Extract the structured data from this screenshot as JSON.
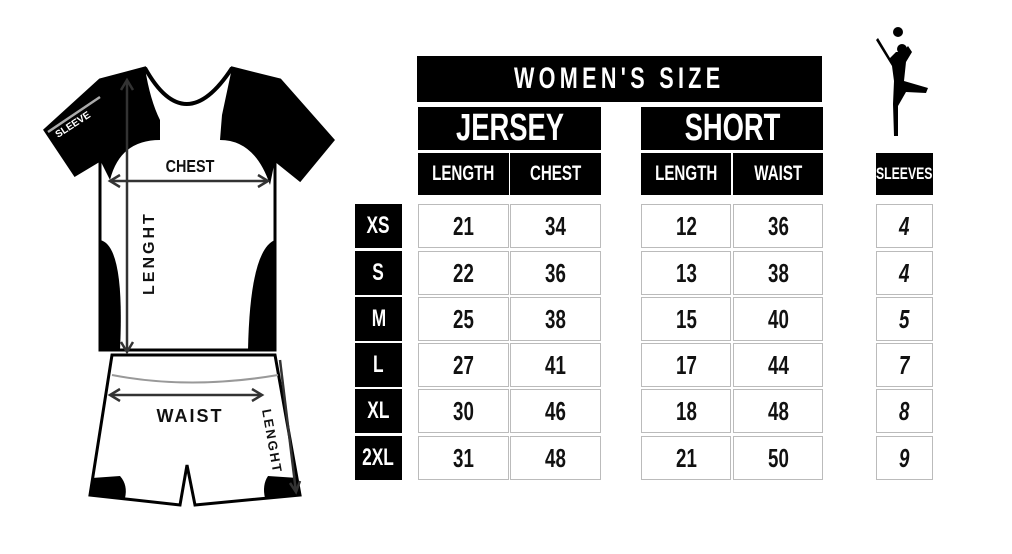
{
  "title": "WOMEN'S SIZE",
  "jersey": {
    "label": "JERSEY",
    "columns": [
      "LENGTH",
      "CHEST"
    ]
  },
  "short": {
    "label": "SHORT",
    "columns": [
      "LENGTH",
      "WAIST"
    ]
  },
  "sleeves": {
    "label": "SLEEVES"
  },
  "sizes": [
    "XS",
    "S",
    "M",
    "L",
    "XL",
    "2XL"
  ],
  "rows": [
    {
      "size": "XS",
      "jersey_length": "21",
      "jersey_chest": "34",
      "short_length": "12",
      "short_waist": "36",
      "sleeves": "4"
    },
    {
      "size": "S",
      "jersey_length": "22",
      "jersey_chest": "36",
      "short_length": "13",
      "short_waist": "38",
      "sleeves": "4"
    },
    {
      "size": "M",
      "jersey_length": "25",
      "jersey_chest": "38",
      "short_length": "15",
      "short_waist": "40",
      "sleeves": "5"
    },
    {
      "size": "L",
      "jersey_length": "27",
      "jersey_chest": "41",
      "short_length": "17",
      "short_waist": "44",
      "sleeves": "7"
    },
    {
      "size": "XL",
      "jersey_length": "30",
      "jersey_chest": "46",
      "short_length": "18",
      "short_waist": "48",
      "sleeves": "8"
    },
    {
      "size": "2XL",
      "jersey_length": "31",
      "jersey_chest": "48",
      "short_length": "21",
      "short_waist": "50",
      "sleeves": "9"
    }
  ],
  "diagram": {
    "sleeve": "SLEEVE",
    "chest": "CHEST",
    "jersey_length": "LENGHT",
    "waist": "WAIST",
    "short_length": "LENGHT"
  },
  "icons": {
    "figure": "volleyball-player-silhouette-icon"
  }
}
